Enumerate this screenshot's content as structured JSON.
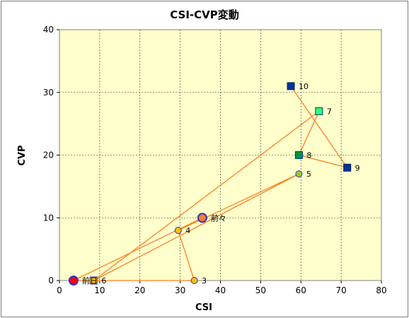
{
  "chart_data": {
    "type": "scatter",
    "title": "CSI-CVP変動",
    "xlabel": "CSI",
    "ylabel": "CVP",
    "xlim": [
      0,
      80
    ],
    "ylim": [
      0,
      40
    ],
    "xticks": [
      "0",
      "10",
      "20",
      "30",
      "40",
      "50",
      "60",
      "70",
      "80"
    ],
    "yticks": [
      "0",
      "10",
      "20",
      "30",
      "40"
    ],
    "grid": true,
    "plot_background": "#ffffcc",
    "line_color": "#ff7f1e",
    "path_order": [
      "前々",
      "前日",
      "3",
      "4",
      "5",
      "6",
      "7",
      "8",
      "9",
      "10"
    ],
    "points": [
      {
        "label": "前日",
        "x": 3.5,
        "y": 0,
        "shape": "circle",
        "size": "large",
        "fill": "#ff0000",
        "stroke": "#3333cc"
      },
      {
        "label": "前々",
        "x": 35.5,
        "y": 10,
        "shape": "circle",
        "size": "large",
        "fill": "#ff7f1e",
        "stroke": "#3333cc"
      },
      {
        "label": "3",
        "x": 33.5,
        "y": 0,
        "shape": "circle",
        "size": "small",
        "fill": "#ffc000",
        "stroke": "#3333cc"
      },
      {
        "label": "4",
        "x": 29.5,
        "y": 8,
        "shape": "circle",
        "size": "small",
        "fill": "#ffc000",
        "stroke": "#3333cc"
      },
      {
        "label": "5",
        "x": 59.5,
        "y": 17,
        "shape": "circle",
        "size": "small",
        "fill": "#99cc33",
        "stroke": "#3333cc"
      },
      {
        "label": "6",
        "x": 8.5,
        "y": 0,
        "shape": "square",
        "size": "small",
        "fill": "#ffc000",
        "stroke": "#3333cc"
      },
      {
        "label": "7",
        "x": 64.5,
        "y": 27,
        "shape": "square",
        "size": "small",
        "fill": "#33ff66",
        "stroke": "#003399"
      },
      {
        "label": "8",
        "x": 59.5,
        "y": 20,
        "shape": "square",
        "size": "small",
        "fill": "#009933",
        "stroke": "#003399"
      },
      {
        "label": "9",
        "x": 71.5,
        "y": 18,
        "shape": "square",
        "size": "small",
        "fill": "#003399",
        "stroke": "#001a66"
      },
      {
        "label": "10",
        "x": 57.5,
        "y": 31,
        "shape": "square",
        "size": "small",
        "fill": "#003399",
        "stroke": "#001a66"
      }
    ]
  }
}
